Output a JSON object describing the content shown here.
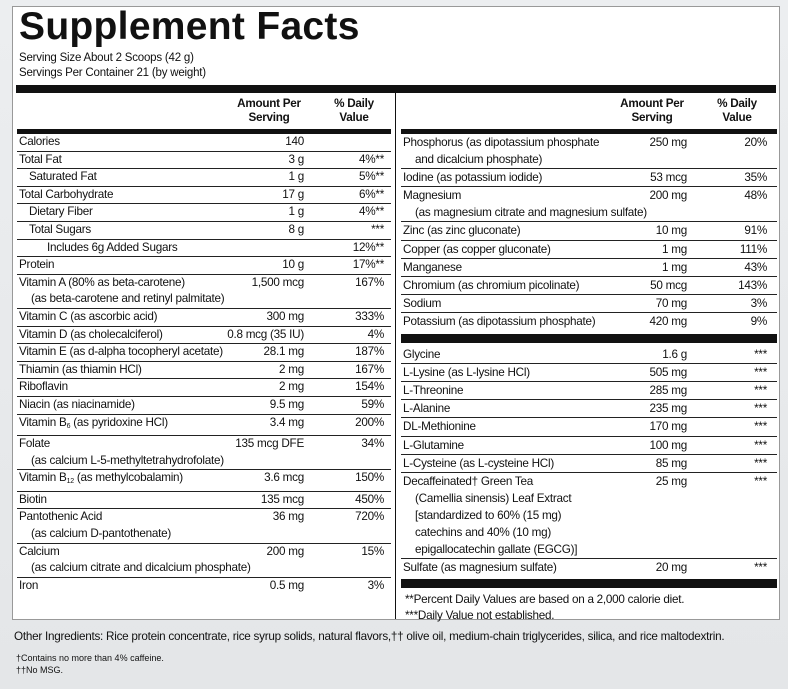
{
  "title": "Supplement Facts",
  "serving_size": "Serving Size About 2 Scoops (42 g)",
  "servings_per_container": "Servings Per Container 21 (by weight)",
  "header": {
    "amount": "Amount Per Serving",
    "dv": "% Daily Value"
  },
  "left_rows": [
    {
      "name": "Calories",
      "amount": "140",
      "dv": ""
    },
    {
      "name": "Total Fat",
      "amount": "3 g",
      "dv": "4%**"
    },
    {
      "name": "Saturated Fat",
      "amount": "1 g",
      "dv": "5%**"
    },
    {
      "name": "Total Carbohydrate",
      "amount": "17 g",
      "dv": "6%**"
    },
    {
      "name": "Dietary Fiber",
      "amount": "1 g",
      "dv": "4%**"
    },
    {
      "name": "Total Sugars",
      "amount": "8 g",
      "dv": "***"
    },
    {
      "name": "Includes 6g Added Sugars",
      "dv": "12%**"
    },
    {
      "name": "Protein",
      "amount": "10 g",
      "dv": "17%**"
    },
    {
      "name": "Vitamin A (80% as beta-carotene)",
      "amount": "1,500 mcg",
      "dv": "167%",
      "detail": "(as beta-carotene and retinyl palmitate)"
    },
    {
      "name": "Vitamin C (as ascorbic acid)",
      "amount": "300 mg",
      "dv": "333%"
    },
    {
      "name": "Vitamin D (as cholecalciferol)",
      "amount": "0.8 mcg (35 IU)",
      "dv": "4%"
    },
    {
      "name": "Vitamin E (as d-alpha tocopheryl acetate)",
      "amount": "28.1 mg",
      "dv": "187%"
    },
    {
      "name": "Thiamin (as thiamin HCl)",
      "amount": "2 mg",
      "dv": "167%"
    },
    {
      "name": "Riboflavin",
      "amount": "2 mg",
      "dv": "154%"
    },
    {
      "name": "Niacin (as niacinamide)",
      "amount": "9.5 mg",
      "dv": "59%"
    },
    {
      "name": "Vitamin B",
      "sub": "6",
      "name_rest": " (as pyridoxine HCl)",
      "amount": "3.4 mg",
      "dv": "200%"
    },
    {
      "name": "Folate",
      "amount": "135 mcg DFE",
      "dv": "34%",
      "detail": "(as calcium L-5-methyltetrahydrofolate)"
    },
    {
      "name": "Vitamin B",
      "sub": "12",
      "name_rest": " (as methylcobalamin)",
      "amount": "3.6 mcg",
      "dv": "150%"
    },
    {
      "name": "Biotin",
      "amount": "135 mcg",
      "dv": "450%"
    },
    {
      "name": "Pantothenic Acid",
      "amount": "36 mg",
      "dv": "720%",
      "detail": "(as calcium D-pantothenate)"
    },
    {
      "name": "Calcium",
      "amount": "200 mg",
      "dv": "15%",
      "detail": "(as calcium citrate and dicalcium phosphate)"
    },
    {
      "name": "Iron",
      "amount": "0.5 mg",
      "dv": "3%"
    }
  ],
  "right_rows": [
    {
      "name": "Phosphorus (as dipotassium phosphate",
      "amount": "250 mg",
      "dv": "20%",
      "detail": "and dicalcium phosphate)"
    },
    {
      "name": "Iodine (as potassium iodide)",
      "amount": "53 mcg",
      "dv": "35%"
    },
    {
      "name": "Magnesium",
      "amount": "200 mg",
      "dv": "48%",
      "detail": "(as magnesium citrate and magnesium sulfate)"
    },
    {
      "name": "Zinc (as zinc gluconate)",
      "amount": "10 mg",
      "dv": "91%"
    },
    {
      "name": "Copper (as copper gluconate)",
      "amount": "1 mg",
      "dv": "111%"
    },
    {
      "name": "Manganese",
      "amount": "1 mg",
      "dv": "43%"
    },
    {
      "name": "Chromium (as chromium picolinate)",
      "amount": "50 mcg",
      "dv": "143%"
    },
    {
      "name": "Sodium",
      "amount": "70 mg",
      "dv": "3%"
    },
    {
      "name": "Potassium (as dipotassium phosphate)",
      "amount": "420 mg",
      "dv": "9%"
    }
  ],
  "amino_rows": [
    {
      "name": "Glycine",
      "amount": "1.6 g",
      "dv": "***"
    },
    {
      "name": "L-Lysine (as L-lysine HCl)",
      "amount": "505 mg",
      "dv": "***"
    },
    {
      "name": "L-Threonine",
      "amount": "285 mg",
      "dv": "***"
    },
    {
      "name": "L-Alanine",
      "amount": "235 mg",
      "dv": "***"
    },
    {
      "name": "DL-Methionine",
      "amount": "170 mg",
      "dv": "***"
    },
    {
      "name": "L-Glutamine",
      "amount": "100 mg",
      "dv": "***"
    },
    {
      "name": "L-Cysteine (as L-cysteine HCl)",
      "amount": "85 mg",
      "dv": "***"
    },
    {
      "name": "Decaffeinated† Green Tea",
      "amount": "25 mg",
      "dv": "***",
      "detail": [
        "(Camellia sinensis) Leaf Extract",
        "[standardized to 60% (15 mg)",
        "catechins and 40% (10 mg)",
        "epigallocatechin gallate (EGCG)]"
      ]
    },
    {
      "name": "Sulfate (as magnesium sulfate)",
      "amount": "20 mg",
      "dv": "***"
    }
  ],
  "notes": [
    "**Percent Daily Values are based on a 2,000 calorie diet.",
    "***Daily Value not established."
  ],
  "other_ingredients": "Other Ingredients: Rice protein concentrate, rice syrup solids, natural flavors,†† olive oil, medium-chain triglycerides, silica, and rice maltodextrin.",
  "footnotes": [
    "†Contains no more than 4% caffeine.",
    "††No MSG."
  ]
}
